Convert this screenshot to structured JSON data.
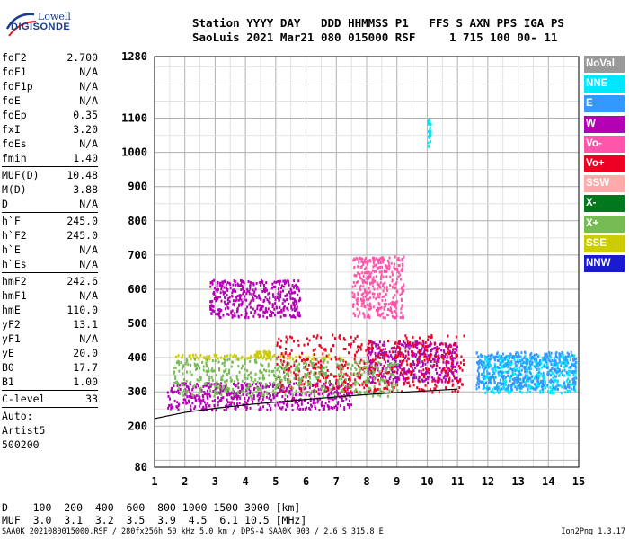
{
  "logo": {
    "top": "Lowell",
    "main": "DIGISONDE"
  },
  "header": {
    "line1": "Station YYYY DAY   DDD HHMMSS P1   FFS S AXN PPS IGA PS",
    "line2": "SaoLuis 2021 Mar21 080 015000 RSF     1 715 100 00- 11"
  },
  "params_group1": [
    {
      "name": "foF2",
      "value": "2.700"
    },
    {
      "name": "foF1",
      "value": "N/A"
    },
    {
      "name": "foF1p",
      "value": "N/A"
    },
    {
      "name": "foE",
      "value": "N/A"
    },
    {
      "name": "foEp",
      "value": "0.35"
    },
    {
      "name": "fxI",
      "value": "3.20"
    },
    {
      "name": "foEs",
      "value": "N/A"
    },
    {
      "name": "fmin",
      "value": "1.40"
    }
  ],
  "params_group2": [
    {
      "name": "MUF(D)",
      "value": "10.48"
    },
    {
      "name": "M(D)",
      "value": "3.88"
    },
    {
      "name": "D",
      "value": "N/A"
    }
  ],
  "params_group3": [
    {
      "name": "h`F",
      "value": "245.0"
    },
    {
      "name": "h`F2",
      "value": "245.0"
    },
    {
      "name": "h`E",
      "value": "N/A"
    },
    {
      "name": "h`Es",
      "value": "N/A"
    }
  ],
  "params_group4": [
    {
      "name": "hmF2",
      "value": "242.6"
    },
    {
      "name": "hmF1",
      "value": "N/A"
    },
    {
      "name": "hmE",
      "value": "110.0"
    },
    {
      "name": "yF2",
      "value": "13.1"
    },
    {
      "name": "yF1",
      "value": "N/A"
    },
    {
      "name": "yE",
      "value": "20.0"
    },
    {
      "name": "B0",
      "value": "17.7"
    },
    {
      "name": "B1",
      "value": "1.00"
    }
  ],
  "params_group5": [
    {
      "name": "C-level",
      "value": "33"
    }
  ],
  "auto": [
    "Auto:",
    "Artist5",
    "500200"
  ],
  "legend": [
    {
      "label": "NoVal",
      "color": "#999999"
    },
    {
      "label": "NNE",
      "color": "#00e6ff"
    },
    {
      "label": "E",
      "color": "#3399ff"
    },
    {
      "label": "W",
      "color": "#b400b4"
    },
    {
      "label": "Vo-",
      "color": "#ff55aa"
    },
    {
      "label": "Vo+",
      "color": "#ee0022"
    },
    {
      "label": "SSW",
      "color": "#ffaaaa"
    },
    {
      "label": "X-",
      "color": "#00781e"
    },
    {
      "label": "X+",
      "color": "#77bb55"
    },
    {
      "label": "SSE",
      "color": "#cccc00"
    },
    {
      "label": "NNW",
      "color": "#1a1ad2"
    }
  ],
  "muf_table": {
    "d_row": "D    100  200  400  600  800 1000 1500 3000 [km]",
    "muf_row": "MUF  3.0  3.1  3.2  3.5  3.9  4.5  6.1 10.5 [MHz]"
  },
  "footer": "SAA0K_2021080015000.RSF / 280fx256h 50 kHz 5.0 km / DPS-4 SAA0K 903 / 2.6 S 315.8 E",
  "version": "Ion2Png 1.3.17",
  "chart_data": {
    "type": "scatter",
    "title": "",
    "xlabel": "",
    "ylabel": "",
    "x_ticks": [
      "1",
      "2",
      "3",
      "4",
      "5",
      "6",
      "7",
      "8",
      "9",
      "10",
      "11",
      "12",
      "13",
      "14",
      "15"
    ],
    "y_ticks": [
      "80",
      "200",
      "300",
      "400",
      "500",
      "600",
      "700",
      "800",
      "900",
      "1000",
      "1100",
      "1280"
    ],
    "xlim": [
      1,
      15
    ],
    "ylim": [
      80,
      1280
    ],
    "grid": true,
    "legend_placement": "right",
    "series": [
      {
        "name": "W",
        "color": "#b400b4",
        "regions": [
          {
            "fmin": 1.4,
            "fmax": 7.5,
            "hmin": 250,
            "hmax": 330
          },
          {
            "fmin": 8.0,
            "fmax": 11.0,
            "hmin": 330,
            "hmax": 450
          },
          {
            "fmin": 2.8,
            "fmax": 5.8,
            "hmin": 520,
            "hmax": 630
          }
        ]
      },
      {
        "name": "SSE",
        "color": "#cccc00",
        "regions": [
          {
            "fmin": 1.6,
            "fmax": 7.2,
            "hmin": 398,
            "hmax": 412
          },
          {
            "fmin": 4.3,
            "fmax": 4.8,
            "hmin": 400,
            "hmax": 425
          }
        ]
      },
      {
        "name": "Vo+",
        "color": "#ee0022",
        "regions": [
          {
            "fmin": 5.0,
            "fmax": 11.2,
            "hmin": 300,
            "hmax": 470
          }
        ]
      },
      {
        "name": "NNE",
        "color": "#00e6ff",
        "regions": [
          {
            "fmin": 11.8,
            "fmax": 14.9,
            "hmin": 300,
            "hmax": 410
          },
          {
            "fmin": 10.0,
            "fmax": 10.1,
            "hmin": 1020,
            "hmax": 1100
          }
        ]
      },
      {
        "name": "E",
        "color": "#3399ff",
        "regions": [
          {
            "fmin": 11.6,
            "fmax": 14.9,
            "hmin": 310,
            "hmax": 420
          }
        ]
      },
      {
        "name": "X+",
        "color": "#77bb55",
        "regions": [
          {
            "fmin": 1.6,
            "fmax": 9.0,
            "hmin": 290,
            "hmax": 400
          }
        ]
      },
      {
        "name": "Vo-",
        "color": "#ff55aa",
        "regions": [
          {
            "fmin": 7.5,
            "fmax": 9.2,
            "hmin": 520,
            "hmax": 700
          }
        ]
      }
    ],
    "trace": {
      "x": [
        1.0,
        2.0,
        3.0,
        4.0,
        5.0,
        6.0,
        7.0,
        8.0,
        9.0,
        10.0,
        11.0
      ],
      "y": [
        222,
        240,
        252,
        262,
        270,
        278,
        285,
        292,
        298,
        303,
        308
      ]
    }
  }
}
